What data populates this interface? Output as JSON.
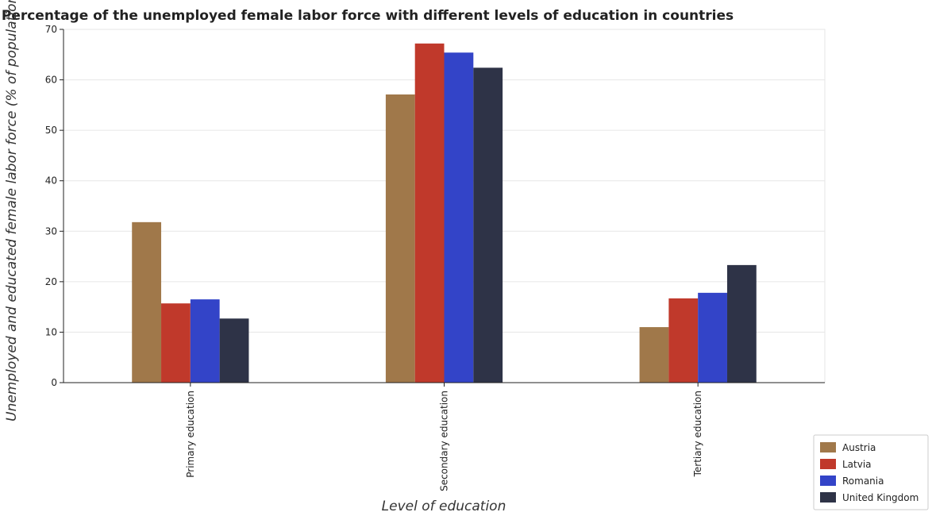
{
  "chart_data": {
    "type": "bar",
    "title": "Percentage of the unemployed female labor force with different levels of education in countries",
    "xlabel": "Level of education",
    "ylabel": "Unemployed and educated female labor force (% of population)",
    "categories": [
      "Primary education",
      "Secondary education",
      "Tertiary education"
    ],
    "ylim": [
      0,
      70
    ],
    "yticks": [
      0,
      10,
      20,
      30,
      40,
      50,
      60,
      70
    ],
    "grid": true,
    "legend_position": "bottom-right",
    "series": [
      {
        "name": "Austria",
        "color": "#a0784a",
        "values": [
          31.8,
          57.1,
          11.0
        ]
      },
      {
        "name": "Latvia",
        "color": "#c0392b",
        "values": [
          15.7,
          67.2,
          16.7
        ]
      },
      {
        "name": "Romania",
        "color": "#3344c8",
        "values": [
          16.5,
          65.4,
          17.8
        ]
      },
      {
        "name": "United Kingdom",
        "color": "#2e3347",
        "values": [
          12.7,
          62.4,
          23.3
        ]
      }
    ]
  }
}
